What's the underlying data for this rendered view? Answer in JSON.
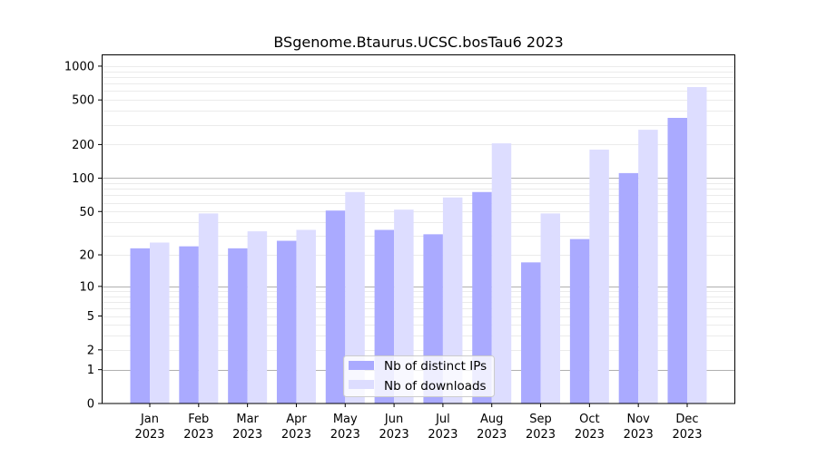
{
  "chart_data": {
    "type": "bar",
    "title": "BSgenome.Btaurus.UCSC.bosTau6 2023",
    "xlabel": "",
    "ylabel": "",
    "yscale": "log(1+y)",
    "ylim": [
      0,
      1270
    ],
    "yticks": [
      0,
      1,
      2,
      5,
      10,
      20,
      50,
      100,
      200,
      500,
      1000
    ],
    "grid": true,
    "legend_position": "bottom-center",
    "categories": [
      [
        "Jan",
        "2023"
      ],
      [
        "Feb",
        "2023"
      ],
      [
        "Mar",
        "2023"
      ],
      [
        "Apr",
        "2023"
      ],
      [
        "May",
        "2023"
      ],
      [
        "Jun",
        "2023"
      ],
      [
        "Jul",
        "2023"
      ],
      [
        "Aug",
        "2023"
      ],
      [
        "Sep",
        "2023"
      ],
      [
        "Oct",
        "2023"
      ],
      [
        "Nov",
        "2023"
      ],
      [
        "Dec",
        "2023"
      ]
    ],
    "series": [
      {
        "name": "Nb of distinct IPs",
        "color": "#aaaaff",
        "values": [
          23,
          24,
          23,
          27,
          51,
          34,
          31,
          75,
          17,
          28,
          111,
          346
        ]
      },
      {
        "name": "Nb of downloads",
        "color": "#ddddff",
        "values": [
          26,
          48,
          33,
          34,
          75,
          52,
          67,
          205,
          48,
          180,
          271,
          651
        ]
      }
    ]
  }
}
